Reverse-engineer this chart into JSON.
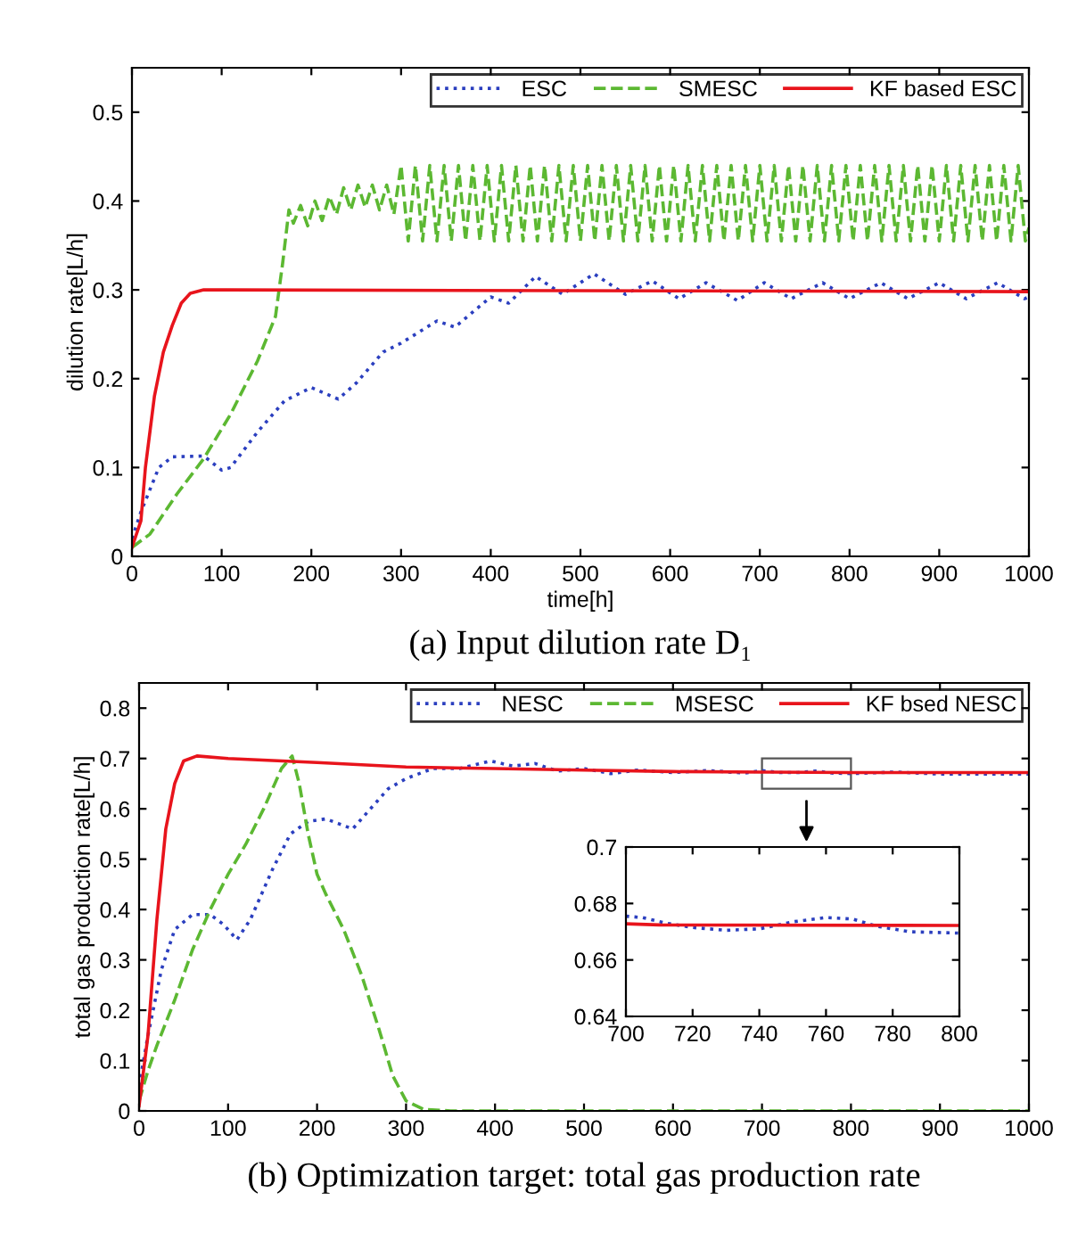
{
  "chart_data": [
    {
      "type": "line",
      "title": "(a) Input dilution rate D₁",
      "xlabel": "time[h]",
      "ylabel": "dilution rate[L/h]",
      "xlim": [
        0,
        1000
      ],
      "ylim": [
        0,
        0.55
      ],
      "xticks": [
        0,
        100,
        200,
        300,
        400,
        500,
        600,
        700,
        800,
        900,
        1000
      ],
      "yticks": [
        0,
        0.1,
        0.2,
        0.3,
        0.4,
        0.5
      ],
      "grid": false,
      "legend": "top right",
      "series": [
        {
          "name": "ESC",
          "color": "#2b3fbf",
          "line_style": "dotted",
          "x": [
            0,
            10,
            30,
            45,
            80,
            100,
            110,
            140,
            170,
            200,
            230,
            250,
            280,
            300,
            340,
            360,
            400,
            420,
            450,
            480,
            515,
            550,
            580,
            610,
            640,
            675,
            705,
            735,
            770,
            800,
            835,
            865,
            900,
            930,
            965,
            995,
            1000
          ],
          "values": [
            0.02,
            0.05,
            0.1,
            0.112,
            0.113,
            0.097,
            0.1,
            0.14,
            0.175,
            0.19,
            0.177,
            0.195,
            0.23,
            0.24,
            0.265,
            0.258,
            0.292,
            0.285,
            0.315,
            0.295,
            0.318,
            0.295,
            0.31,
            0.29,
            0.308,
            0.288,
            0.308,
            0.29,
            0.308,
            0.29,
            0.308,
            0.29,
            0.308,
            0.29,
            0.308,
            0.29,
            0.292
          ]
        },
        {
          "name": "SMESC",
          "color": "#5cb832",
          "line_style": "dashed",
          "x": [
            0,
            20,
            50,
            80,
            110,
            140,
            160,
            168,
            175,
            180,
            188,
            196,
            204,
            212,
            220,
            228,
            236,
            244,
            252,
            260,
            268,
            276,
            284,
            292,
            300,
            308,
            316,
            324,
            332,
            340,
            348,
            356,
            364,
            372,
            380,
            388,
            396,
            404,
            412,
            420,
            428,
            436,
            444,
            452,
            460,
            468,
            476,
            484,
            492,
            500,
            508,
            516,
            524,
            532,
            540,
            548,
            556,
            564,
            572,
            580,
            588,
            596,
            604,
            612,
            620,
            628,
            636,
            644,
            652,
            660,
            668,
            676,
            684,
            692,
            700,
            708,
            716,
            724,
            732,
            740,
            748,
            756,
            764,
            772,
            780,
            788,
            796,
            804,
            812,
            820,
            828,
            836,
            844,
            852,
            860,
            868,
            876,
            884,
            892,
            900,
            908,
            916,
            924,
            932,
            940,
            948,
            956,
            964,
            972,
            980,
            988,
            996,
            1000
          ],
          "values": [
            0.01,
            0.025,
            0.07,
            0.11,
            0.16,
            0.22,
            0.27,
            0.33,
            0.39,
            0.375,
            0.395,
            0.372,
            0.4,
            0.378,
            0.405,
            0.385,
            0.415,
            0.39,
            0.418,
            0.393,
            0.418,
            0.39,
            0.418,
            0.385,
            0.44,
            0.355,
            0.44,
            0.355,
            0.44,
            0.355,
            0.44,
            0.355,
            0.44,
            0.355,
            0.44,
            0.355,
            0.44,
            0.355,
            0.44,
            0.355,
            0.44,
            0.355,
            0.44,
            0.355,
            0.44,
            0.355,
            0.44,
            0.355,
            0.44,
            0.355,
            0.44,
            0.355,
            0.44,
            0.355,
            0.44,
            0.355,
            0.44,
            0.355,
            0.44,
            0.355,
            0.44,
            0.355,
            0.44,
            0.355,
            0.44,
            0.355,
            0.44,
            0.355,
            0.44,
            0.355,
            0.44,
            0.355,
            0.44,
            0.355,
            0.44,
            0.355,
            0.44,
            0.355,
            0.44,
            0.355,
            0.44,
            0.355,
            0.44,
            0.355,
            0.44,
            0.355,
            0.44,
            0.355,
            0.44,
            0.355,
            0.44,
            0.355,
            0.44,
            0.355,
            0.44,
            0.355,
            0.44,
            0.355,
            0.44,
            0.355,
            0.44,
            0.355,
            0.44,
            0.355,
            0.44,
            0.355,
            0.44,
            0.355,
            0.44,
            0.355,
            0.44,
            0.355,
            0.37
          ]
        },
        {
          "name": "KF based ESC",
          "color": "#e8141c",
          "line_style": "solid",
          "x": [
            0,
            10,
            15,
            25,
            35,
            45,
            55,
            65,
            80,
            1000
          ],
          "values": [
            0.01,
            0.04,
            0.1,
            0.18,
            0.23,
            0.26,
            0.285,
            0.296,
            0.3,
            0.298
          ]
        }
      ]
    },
    {
      "type": "line",
      "title": "(b) Optimization target: total gas production rate",
      "ylabel": "total gas production rate[L/h]",
      "xlim": [
        0,
        1000
      ],
      "ylim": [
        0,
        0.85
      ],
      "xticks": [
        0,
        100,
        200,
        300,
        400,
        500,
        600,
        700,
        800,
        900,
        1000
      ],
      "yticks": [
        0,
        0.1,
        0.2,
        0.3,
        0.4,
        0.5,
        0.6,
        0.7,
        0.8
      ],
      "grid": false,
      "legend": "top right",
      "series": [
        {
          "name": "NESC",
          "color": "#2b3fbf",
          "line_style": "dotted",
          "x": [
            0,
            10,
            25,
            40,
            60,
            80,
            95,
            110,
            125,
            150,
            170,
            190,
            210,
            225,
            240,
            260,
            280,
            300,
            330,
            360,
            395,
            420,
            445,
            470,
            500,
            530,
            560,
            600,
            640,
            680,
            700,
            720,
            740,
            760,
            780,
            800,
            850,
            900,
            1000
          ],
          "values": [
            0.05,
            0.15,
            0.28,
            0.36,
            0.39,
            0.39,
            0.37,
            0.34,
            0.38,
            0.48,
            0.55,
            0.575,
            0.58,
            0.57,
            0.56,
            0.6,
            0.64,
            0.66,
            0.68,
            0.68,
            0.695,
            0.685,
            0.69,
            0.675,
            0.68,
            0.67,
            0.677,
            0.672,
            0.676,
            0.671,
            0.676,
            0.672,
            0.672,
            0.675,
            0.671,
            0.67,
            0.673,
            0.669,
            0.669
          ]
        },
        {
          "name": "MSESC",
          "color": "#5cb832",
          "line_style": "dashed",
          "x": [
            0,
            10,
            20,
            40,
            60,
            80,
            100,
            120,
            140,
            160,
            172,
            180,
            190,
            200,
            210,
            230,
            250,
            270,
            285,
            300,
            320,
            350,
            1000
          ],
          "values": [
            0.02,
            0.08,
            0.13,
            0.22,
            0.32,
            0.4,
            0.47,
            0.53,
            0.6,
            0.68,
            0.705,
            0.65,
            0.55,
            0.47,
            0.43,
            0.36,
            0.27,
            0.16,
            0.07,
            0.02,
            0.003,
            0,
            0
          ]
        },
        {
          "name": "KF bsed NESC",
          "color": "#e8141c",
          "line_style": "solid",
          "x": [
            0,
            10,
            20,
            30,
            40,
            50,
            65,
            100,
            200,
            300,
            400,
            500,
            600,
            700,
            710,
            800,
            1000
          ],
          "values": [
            0.01,
            0.15,
            0.38,
            0.56,
            0.65,
            0.695,
            0.705,
            0.7,
            0.692,
            0.683,
            0.68,
            0.677,
            0.674,
            0.673,
            0.673,
            0.672,
            0.672
          ]
        }
      ]
    },
    {
      "type": "line",
      "xlim": [
        700,
        800
      ],
      "ylim": [
        0.64,
        0.7
      ],
      "xticks": [
        700,
        720,
        740,
        760,
        780,
        800
      ],
      "yticks": [
        0.64,
        0.66,
        0.68,
        0.7
      ],
      "grid": false,
      "legend": false,
      "series": [
        {
          "color": "#2b3fbf",
          "line_style": "dotted",
          "x": [
            700,
            705,
            712,
            720,
            730,
            740,
            750,
            760,
            768,
            775,
            785,
            800
          ],
          "values": [
            0.6755,
            0.675,
            0.673,
            0.6715,
            0.6705,
            0.671,
            0.6735,
            0.675,
            0.6745,
            0.672,
            0.67,
            0.6695
          ]
        },
        {
          "color": "#e8141c",
          "line_style": "solid",
          "x": [
            700,
            710,
            800
          ],
          "values": [
            0.6728,
            0.6724,
            0.6722
          ]
        }
      ]
    }
  ]
}
